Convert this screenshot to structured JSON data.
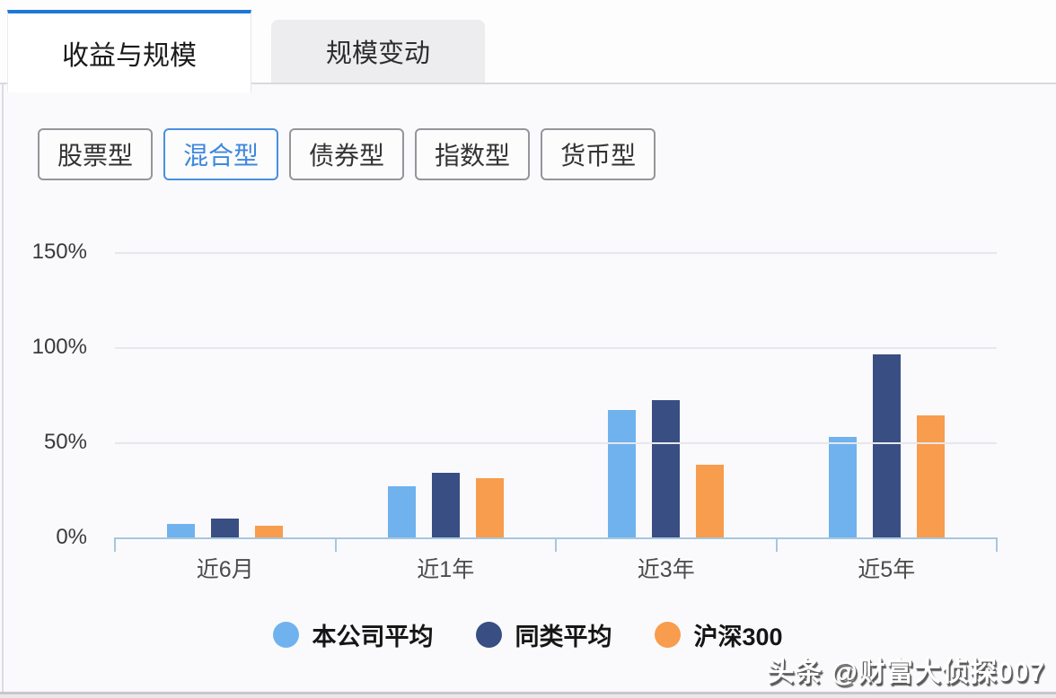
{
  "tabs": [
    {
      "label": "收益与规模",
      "active": true
    },
    {
      "label": "规模变动",
      "active": false
    }
  ],
  "filters": [
    {
      "key": "stock",
      "label": "股票型",
      "active": false
    },
    {
      "key": "mixed",
      "label": "混合型",
      "active": true
    },
    {
      "key": "bond",
      "label": "债券型",
      "active": false
    },
    {
      "key": "index",
      "label": "指数型",
      "active": false
    },
    {
      "key": "money",
      "label": "货币型",
      "active": false
    }
  ],
  "watermark": "头条 @财富大侦探007",
  "colors": {
    "tab_accent": "#1E78D8",
    "filter_active": "#4A90DE",
    "axis": "#A6C7DF",
    "gridline": "#E7E7EC"
  },
  "chart_data": {
    "type": "bar",
    "title": "",
    "categories": [
      "近6月",
      "近1年",
      "近3年",
      "近5年"
    ],
    "series": [
      {
        "name": "本公司平均",
        "color": "#6FB2EE",
        "values": [
          7,
          27,
          67,
          53
        ]
      },
      {
        "name": "同类平均",
        "color": "#394E82",
        "values": [
          10,
          34,
          72,
          96
        ]
      },
      {
        "name": "沪深300",
        "color": "#F89C4D",
        "values": [
          6,
          31,
          38,
          64
        ]
      }
    ],
    "unit": "%",
    "ylim": [
      0,
      150
    ],
    "yticks": [
      "150%",
      "100%",
      "50%",
      "0%"
    ],
    "grid": true,
    "legend_position": "bottom"
  }
}
